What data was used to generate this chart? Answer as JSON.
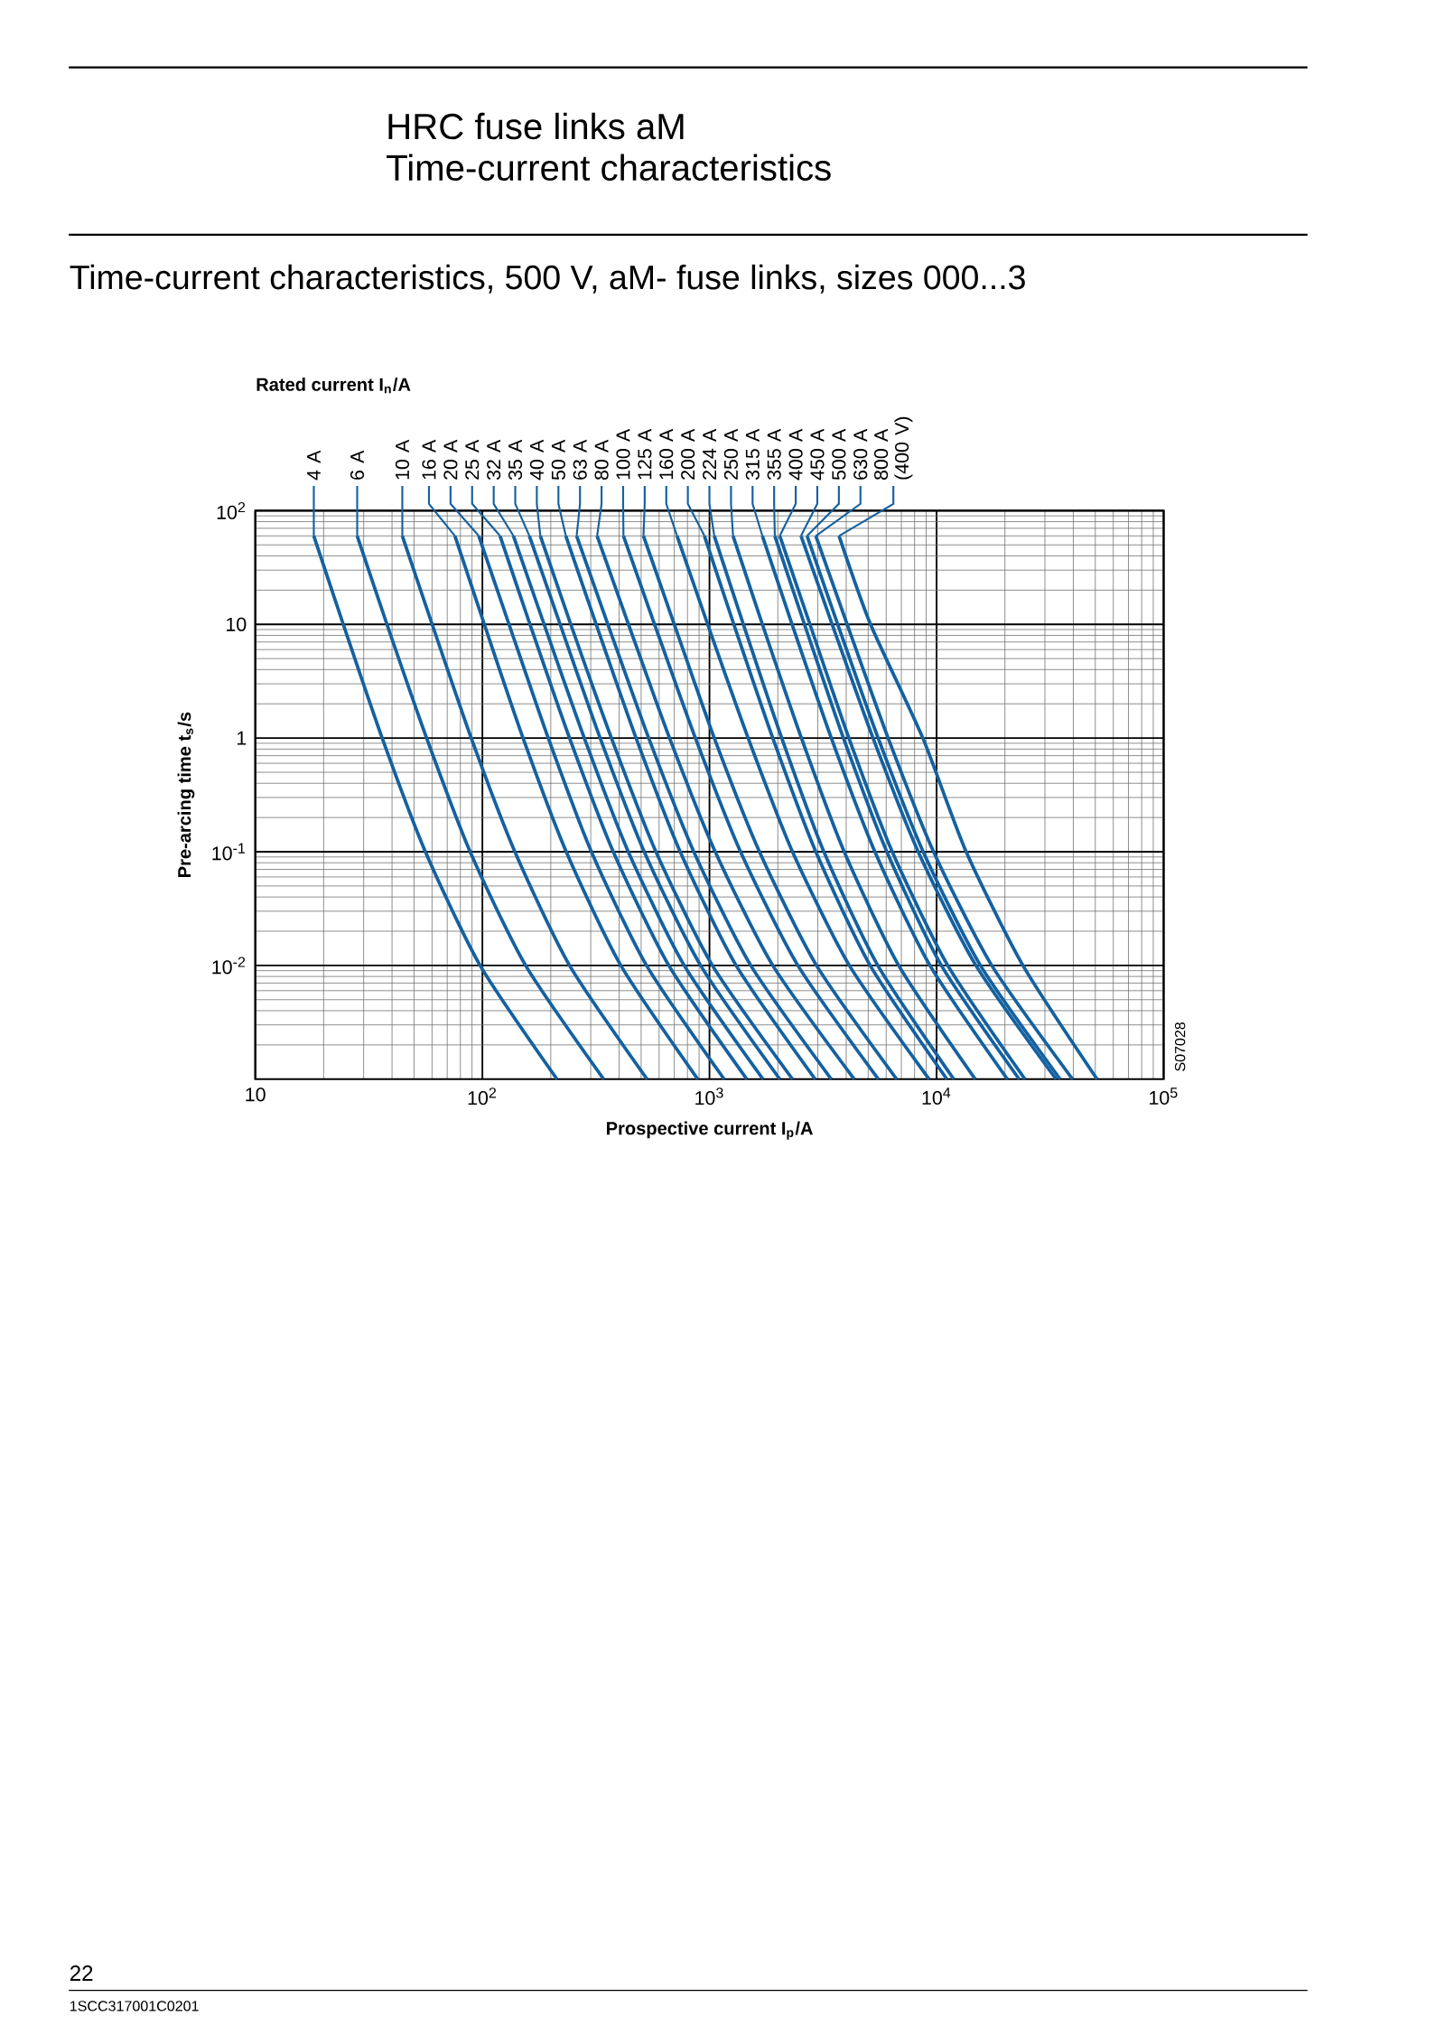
{
  "chart_data": {
    "type": "line",
    "title": "HRC fuse links aM",
    "subtitle": "Time-current characteristics",
    "legend_title": "Rated current I$_{n}$/A",
    "xlabel": "Prospective current I$_{p}$/A",
    "ylabel": "Pre-arcing time t$_{s}$/s",
    "annotations": [
      "Time-current characteristics, 500 V, aM- fuse links, sizes 000...3",
      "S07028",
      "22",
      "1SCC317001C0201"
    ],
    "log": "xy",
    "grid": true,
    "xlim": [
      10,
      100000
    ],
    "ylim": [
      0.001,
      100
    ],
    "xticks": [
      10,
      {
        "value": 100,
        "label": "10$^{2}$"
      },
      {
        "value": 1000,
        "label": "10$^{3}$"
      },
      {
        "value": 10000,
        "label": "10$^{4}$"
      },
      {
        "value": 100000,
        "label": "10$^{5}$"
      }
    ],
    "yticks": [
      {
        "value": 0.01,
        "label": "10$^{-2}$"
      },
      {
        "value": 0.1,
        "label": "10$^{-1}$"
      },
      1,
      10,
      {
        "value": 100,
        "label": "10$^{2}$"
      }
    ],
    "series": [
      {
        "name": "4 A",
        "color": "#1461a0",
        "x": [
          18.1,
          24.4,
          36.2,
          56.1,
          97.7,
          213
        ],
        "values": [
          60,
          10,
          1,
          0.1,
          0.01,
          0.001
        ]
      },
      {
        "name": "6 A",
        "color": "#1461a0",
        "x": [
          28.1,
          38.0,
          56.8,
          88.3,
          155,
          342
        ],
        "values": [
          60,
          10,
          1,
          0.1,
          0.01,
          0.001
        ]
      },
      {
        "name": "10 A",
        "color": "#1461a0",
        "x": [
          44.4,
          60.1,
          89.3,
          139,
          242,
          531
        ],
        "values": [
          60,
          10,
          1,
          0.1,
          0.01,
          0.001
        ]
      },
      {
        "name": "16 A",
        "color": "#1461a0",
        "x": [
          75.7,
          102,
          151,
          234,
          407,
          888
        ],
        "values": [
          60,
          10,
          1,
          0.1,
          0.01,
          0.001
        ]
      },
      {
        "name": "20 A",
        "color": "#1461a0",
        "x": [
          96.4,
          131,
          195,
          302,
          528,
          1160
        ],
        "values": [
          60,
          10,
          1,
          0.1,
          0.01,
          0.001
        ]
      },
      {
        "name": "25 A",
        "color": "#1461a0",
        "x": [
          119.6,
          162,
          242,
          377,
          662,
          1460
        ],
        "values": [
          60,
          10,
          1,
          0.1,
          0.01,
          0.001
        ]
      },
      {
        "name": "32 A",
        "color": "#1461a0",
        "x": [
          137,
          187,
          281,
          439,
          774,
          1720
        ],
        "values": [
          60,
          10,
          1,
          0.1,
          0.01,
          0.001
        ]
      },
      {
        "name": "35 A",
        "color": "#1461a0",
        "x": [
          161,
          220,
          330,
          516,
          914,
          2040
        ],
        "values": [
          60,
          10,
          1,
          0.1,
          0.01,
          0.001
        ]
      },
      {
        "name": "40 A",
        "color": "#1461a0",
        "x": [
          180,
          245,
          370,
          581,
          1030,
          2320
        ],
        "values": [
          60,
          10,
          1,
          0.1,
          0.01,
          0.001
        ]
      },
      {
        "name": "50 A",
        "color": "#1461a0",
        "x": [
          233,
          317,
          475,
          743,
          1310,
          2920
        ],
        "values": [
          60,
          10,
          1,
          0.1,
          0.01,
          0.001
        ]
      },
      {
        "name": "63 A",
        "color": "#1461a0",
        "x": [
          260,
          357,
          540,
          853,
          1520,
          3440
        ],
        "values": [
          60,
          10,
          1,
          0.1,
          0.01,
          0.001
        ]
      },
      {
        "name": "80 A",
        "color": "#1461a0",
        "x": [
          320,
          440,
          667,
          1060,
          1900,
          4340
        ],
        "values": [
          60,
          10,
          1,
          0.1,
          0.01,
          0.001
        ]
      },
      {
        "name": "100 A",
        "color": "#1461a0",
        "x": [
          418,
          573,
          867,
          1370,
          2450,
          5540
        ],
        "values": [
          60,
          10,
          1,
          0.1,
          0.01,
          0.001
        ]
      },
      {
        "name": "125 A",
        "color": "#1461a0",
        "x": [
          512,
          700,
          1050,
          1660,
          2960,
          6670
        ],
        "values": [
          60,
          10,
          1,
          0.1,
          0.01,
          0.001
        ]
      },
      {
        "name": "160 A",
        "color": "#1461a0",
        "x": [
          720,
          982,
          1480,
          2320,
          4130,
          9270
        ],
        "values": [
          60,
          10,
          1,
          0.1,
          0.01,
          0.001
        ]
      },
      {
        "name": "200 A",
        "color": "#1461a0",
        "x": [
          950,
          1280,
          1900,
          2940,
          5100,
          11100
        ],
        "values": [
          60,
          10,
          1,
          0.1,
          0.01,
          0.001
        ]
      },
      {
        "name": "224 A",
        "color": "#1461a0",
        "x": [
          1050,
          1410,
          2080,
          3190,
          5510,
          11900
        ],
        "values": [
          60,
          10,
          1,
          0.1,
          0.01,
          0.001
        ]
      },
      {
        "name": "250 A",
        "color": "#1461a0",
        "x": [
          1270,
          1710,
          2540,
          3920,
          6810,
          14800
        ],
        "values": [
          60,
          10,
          1,
          0.1,
          0.01,
          0.001
        ]
      },
      {
        "name": "315 A",
        "color": "#1461a0",
        "x": [
          1710,
          2310,
          3440,
          5350,
          9350,
          20500
        ],
        "values": [
          60,
          10,
          1,
          0.1,
          0.01,
          0.001
        ]
      },
      {
        "name": "355 A",
        "color": "#1461a0",
        "x": [
          1940,
          2620,
          3890,
          6040,
          10500,
          23100
        ],
        "values": [
          60,
          10,
          1,
          0.1,
          0.01,
          0.001
        ]
      },
      {
        "name": "400 A",
        "color": "#1461a0",
        "x": [
          2040,
          2770,
          4110,
          6380,
          11200,
          24500
        ],
        "values": [
          60,
          10,
          1,
          0.1,
          0.01,
          0.001
        ]
      },
      {
        "name": "450 A",
        "color": "#1461a0",
        "x": [
          2530,
          3470,
          5250,
          8300,
          14900,
          33600
        ],
        "values": [
          60,
          10,
          1,
          0.1,
          0.01,
          0.001
        ]
      },
      {
        "name": "500 A",
        "color": "#1461a0",
        "x": [
          2690,
          3670,
          5530,
          8730,
          15600,
          35000
        ],
        "values": [
          60,
          10,
          1,
          0.1,
          0.01,
          0.001
        ]
      },
      {
        "name": "630 A",
        "color": "#1461a0",
        "x": [
          2940,
          4040,
          6120,
          9700,
          17500,
          39700
        ],
        "values": [
          60,
          10,
          1,
          0.1,
          0.01,
          0.001
        ]
      },
      {
        "name": "800 A (400 V)",
        "color": "#1461a0",
        "x": [
          3720,
          5120,
          8700,
          13500,
          24000,
          50900
        ],
        "values": [
          60,
          10,
          1,
          0.1,
          0.01,
          0.001
        ]
      }
    ]
  }
}
